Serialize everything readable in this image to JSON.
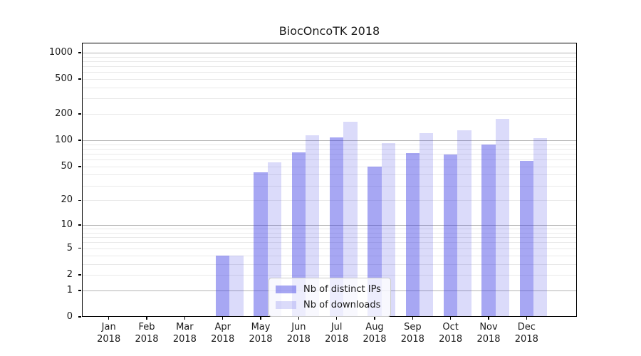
{
  "chart_data": {
    "type": "bar",
    "title": "BiocOncoTK 2018",
    "x_month_labels": [
      "Jan",
      "Feb",
      "Mar",
      "Apr",
      "May",
      "Jun",
      "Jul",
      "Aug",
      "Sep",
      "Oct",
      "Nov",
      "Dec"
    ],
    "x_year_label": "2018",
    "series": [
      {
        "name": "Nb of distinct IPs",
        "color": "rgba(60,60,228,0.45)",
        "values": [
          0,
          0,
          0,
          4,
          43,
          73,
          108,
          50,
          71,
          69,
          89,
          58
        ]
      },
      {
        "name": "Nb of downloads",
        "color": "rgba(60,60,228,0.185)",
        "values": [
          0,
          0,
          0,
          4,
          56,
          114,
          164,
          93,
          121,
          130,
          177,
          105
        ]
      }
    ],
    "yscale": "log(1+v)",
    "yticks": [
      0,
      1,
      2,
      5,
      10,
      20,
      50,
      100,
      200,
      500,
      1000
    ],
    "major_gridlines": [
      1,
      10,
      100,
      1000
    ],
    "minor_gridlines": [
      3,
      4,
      6,
      7,
      8,
      9,
      30,
      40,
      60,
      70,
      80,
      90,
      300,
      400,
      600,
      700,
      800,
      900
    ],
    "ylim": [
      0,
      1300
    ],
    "grid": "on",
    "legend_position": "lower-center",
    "colors": {
      "bar_distinct_ips": "rgba(60,60,228,0.45)",
      "bar_downloads": "rgba(60,60,228,0.185)",
      "major_grid": "#b3b3b3",
      "minor_grid": "#e9e9e9",
      "axis": "#000000"
    }
  }
}
